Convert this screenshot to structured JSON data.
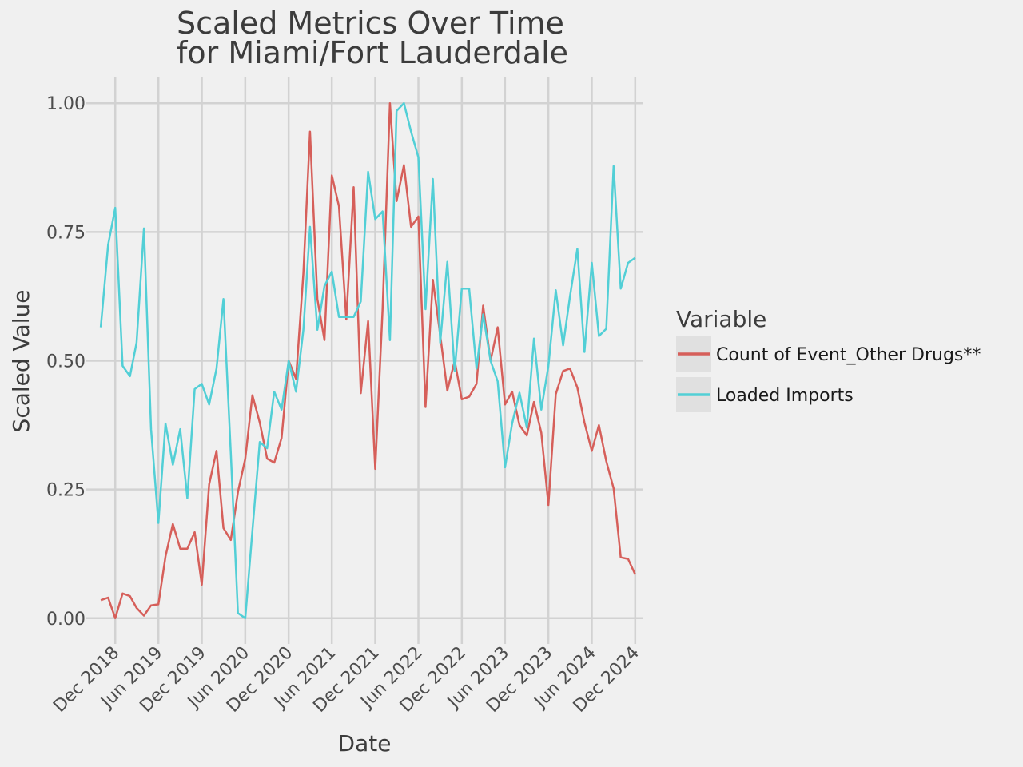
{
  "chart_data": {
    "type": "line",
    "title": "Scaled Metrics Over Time\nfor Miami/Fort Lauderdale",
    "xlabel": "Date",
    "ylabel": "Scaled Value",
    "xlim": [
      "2018-08-01",
      "2025-01-01"
    ],
    "ylim": [
      -0.05,
      1.05
    ],
    "x_ticks": [
      "2018-12-01",
      "2019-06-01",
      "2019-12-01",
      "2020-06-01",
      "2020-12-01",
      "2021-06-01",
      "2021-12-01",
      "2022-06-01",
      "2022-12-01",
      "2023-06-01",
      "2023-12-01",
      "2024-06-01",
      "2024-12-01"
    ],
    "x_tick_labels": [
      "Dec 2018",
      "Jun 2019",
      "Dec 2019",
      "Jun 2020",
      "Dec 2020",
      "Jun 2021",
      "Dec 2021",
      "Jun 2022",
      "Dec 2022",
      "Jun 2023",
      "Dec 2023",
      "Jun 2024",
      "Dec 2024"
    ],
    "y_ticks": [
      0,
      0.25,
      0.5,
      0.75,
      1.0
    ],
    "y_tick_labels": [
      "0.00",
      "0.25",
      "0.50",
      "0.75",
      "1.00"
    ],
    "grid": true,
    "legend": {
      "title": "Variable",
      "position": "right"
    },
    "x": [
      "2018-10-01",
      "2018-11-01",
      "2018-12-01",
      "2019-01-01",
      "2019-02-01",
      "2019-03-01",
      "2019-04-01",
      "2019-05-01",
      "2019-06-01",
      "2019-07-01",
      "2019-08-01",
      "2019-09-01",
      "2019-10-01",
      "2019-11-01",
      "2019-12-01",
      "2020-01-01",
      "2020-02-01",
      "2020-03-01",
      "2020-04-01",
      "2020-05-01",
      "2020-06-01",
      "2020-07-01",
      "2020-08-01",
      "2020-09-01",
      "2020-10-01",
      "2020-11-01",
      "2020-12-01",
      "2021-01-01",
      "2021-02-01",
      "2021-03-01",
      "2021-04-01",
      "2021-05-01",
      "2021-06-01",
      "2021-07-01",
      "2021-08-01",
      "2021-09-01",
      "2021-10-01",
      "2021-11-01",
      "2021-12-01",
      "2022-01-01",
      "2022-02-01",
      "2022-03-01",
      "2022-04-01",
      "2022-05-01",
      "2022-06-01",
      "2022-07-01",
      "2022-08-01",
      "2022-09-01",
      "2022-10-01",
      "2022-11-01",
      "2022-12-01",
      "2023-01-01",
      "2023-02-01",
      "2023-03-01",
      "2023-04-01",
      "2023-05-01",
      "2023-06-01",
      "2023-07-01",
      "2023-08-01",
      "2023-09-01",
      "2023-10-01",
      "2023-11-01",
      "2023-12-01",
      "2024-01-01",
      "2024-02-01",
      "2024-03-01",
      "2024-04-01",
      "2024-05-01",
      "2024-06-01",
      "2024-07-01",
      "2024-08-01",
      "2024-09-01",
      "2024-10-01",
      "2024-11-01",
      "2024-12-01"
    ],
    "series": [
      {
        "name": "Count of Event_Other Drugs**",
        "color": "#d65f5a",
        "values": [
          0.035,
          0.04,
          0.0,
          0.048,
          0.043,
          0.02,
          0.005,
          0.025,
          0.027,
          0.12,
          0.183,
          0.135,
          0.135,
          0.167,
          0.065,
          0.26,
          0.325,
          0.175,
          0.152,
          0.245,
          0.31,
          0.433,
          0.38,
          0.31,
          0.302,
          0.35,
          0.5,
          0.465,
          0.67,
          0.945,
          0.62,
          0.54,
          0.86,
          0.8,
          0.58,
          0.837,
          0.437,
          0.577,
          0.29,
          0.6,
          1.0,
          0.81,
          0.88,
          0.76,
          0.78,
          0.41,
          0.657,
          0.55,
          0.442,
          0.5,
          0.425,
          0.43,
          0.455,
          0.607,
          0.5,
          0.565,
          0.415,
          0.44,
          0.375,
          0.355,
          0.42,
          0.36,
          0.22,
          0.435,
          0.48,
          0.485,
          0.448,
          0.38,
          0.325,
          0.375,
          0.305,
          0.252,
          0.118,
          0.115,
          0.085
        ]
      },
      {
        "name": "Loaded Imports",
        "color": "#52cfd6",
        "values": [
          0.565,
          0.725,
          0.797,
          0.49,
          0.47,
          0.535,
          0.757,
          0.367,
          0.185,
          0.378,
          0.298,
          0.367,
          0.233,
          0.445,
          0.455,
          0.415,
          0.485,
          0.62,
          0.32,
          0.01,
          0.0,
          0.17,
          0.342,
          0.33,
          0.44,
          0.405,
          0.5,
          0.44,
          0.56,
          0.76,
          0.56,
          0.645,
          0.673,
          0.585,
          0.585,
          0.585,
          0.615,
          0.867,
          0.775,
          0.79,
          0.54,
          0.985,
          1.0,
          0.945,
          0.895,
          0.6,
          0.853,
          0.535,
          0.692,
          0.48,
          0.64,
          0.64,
          0.485,
          0.59,
          0.5,
          0.46,
          0.293,
          0.378,
          0.438,
          0.37,
          0.543,
          0.405,
          0.49,
          0.637,
          0.53,
          0.625,
          0.717,
          0.517,
          0.69,
          0.548,
          0.562,
          0.878,
          0.64,
          0.69,
          0.7
        ]
      }
    ]
  }
}
